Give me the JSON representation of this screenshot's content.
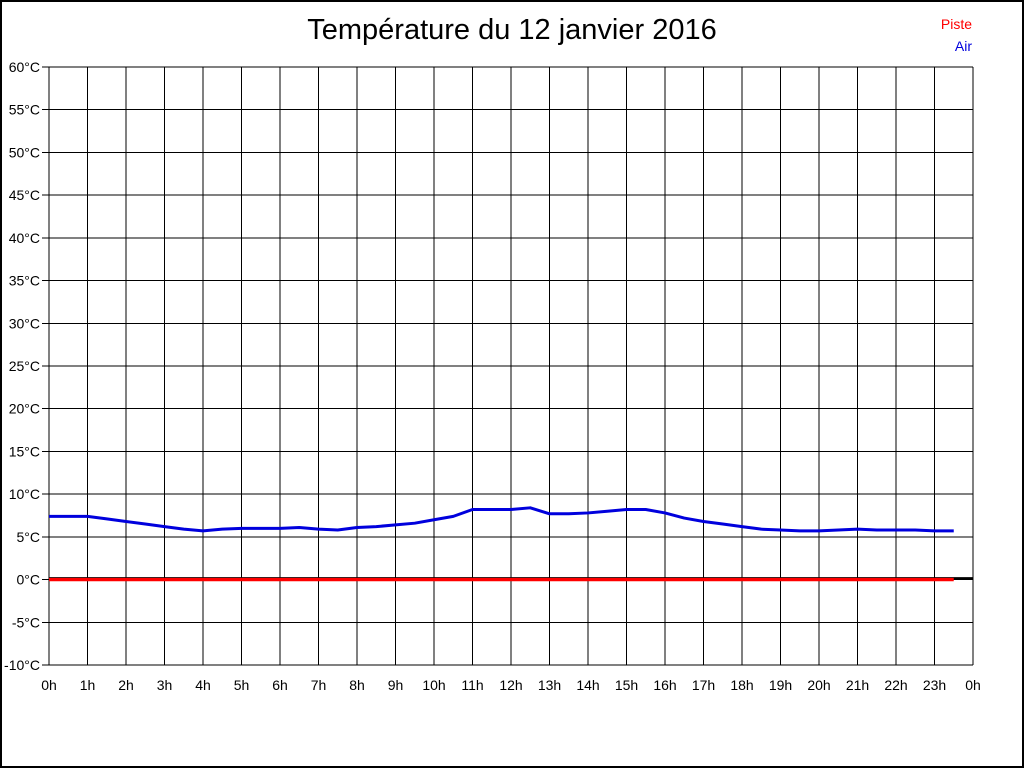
{
  "page": {
    "background": "#ffffff",
    "frame_color": "#000000"
  },
  "chart_data": {
    "type": "line",
    "title": "Température du 12 janvier 2016",
    "xlabel": "",
    "ylabel": "",
    "xlim": [
      0,
      24
    ],
    "ylim": [
      -10,
      60
    ],
    "grid": true,
    "grid_color": "#000000",
    "axis_label_color": "#000000",
    "zero_axis": {
      "value": 0,
      "color": "#000000"
    },
    "legend_position": "top-right",
    "x_tick_labels": [
      "0h",
      "1h",
      "2h",
      "3h",
      "4h",
      "5h",
      "6h",
      "7h",
      "8h",
      "9h",
      "10h",
      "11h",
      "12h",
      "13h",
      "14h",
      "15h",
      "16h",
      "17h",
      "18h",
      "19h",
      "20h",
      "21h",
      "22h",
      "23h",
      "0h"
    ],
    "y_tick_labels": [
      "-10°C",
      "-5°C",
      "0°C",
      "5°C",
      "10°C",
      "15°C",
      "20°C",
      "25°C",
      "30°C",
      "35°C",
      "40°C",
      "45°C",
      "50°C",
      "55°C",
      "60°C"
    ],
    "y_tick_values": [
      -10,
      -5,
      0,
      5,
      10,
      15,
      20,
      25,
      30,
      35,
      40,
      45,
      50,
      55,
      60
    ],
    "x": [
      0,
      0.5,
      1,
      1.5,
      2,
      2.5,
      3,
      3.5,
      4,
      4.5,
      5,
      5.5,
      6,
      6.5,
      7,
      7.5,
      8,
      8.5,
      9,
      9.5,
      10,
      10.5,
      11,
      11.5,
      12,
      12.5,
      13,
      13.5,
      14,
      14.5,
      15,
      15.5,
      16,
      16.5,
      17,
      17.5,
      18,
      18.5,
      19,
      19.5,
      20,
      20.5,
      21,
      21.5,
      22,
      22.5,
      23,
      23.5
    ],
    "series": [
      {
        "name": "Piste",
        "color": "#ff0000",
        "values": [
          0,
          0,
          0,
          0,
          0,
          0,
          0,
          0,
          0,
          0,
          0,
          0,
          0,
          0,
          0,
          0,
          0,
          0,
          0,
          0,
          0,
          0,
          0,
          0,
          0,
          0,
          0,
          0,
          0,
          0,
          0,
          0,
          0,
          0,
          0,
          0,
          0,
          0,
          0,
          0,
          0,
          0,
          0,
          0,
          0,
          0,
          0,
          0
        ]
      },
      {
        "name": "Air",
        "color": "#0000dd",
        "values": [
          7.4,
          7.4,
          7.4,
          7.1,
          6.8,
          6.5,
          6.2,
          5.9,
          5.7,
          5.9,
          6.0,
          6.0,
          6.0,
          6.1,
          5.9,
          5.8,
          6.1,
          6.2,
          6.4,
          6.6,
          7.0,
          7.4,
          8.2,
          8.2,
          8.2,
          8.4,
          7.7,
          7.7,
          7.8,
          8.0,
          8.2,
          8.2,
          7.8,
          7.2,
          6.8,
          6.5,
          6.2,
          5.9,
          5.8,
          5.7,
          5.7,
          5.8,
          5.9,
          5.8,
          5.8,
          5.8,
          5.7,
          5.7
        ]
      }
    ]
  }
}
